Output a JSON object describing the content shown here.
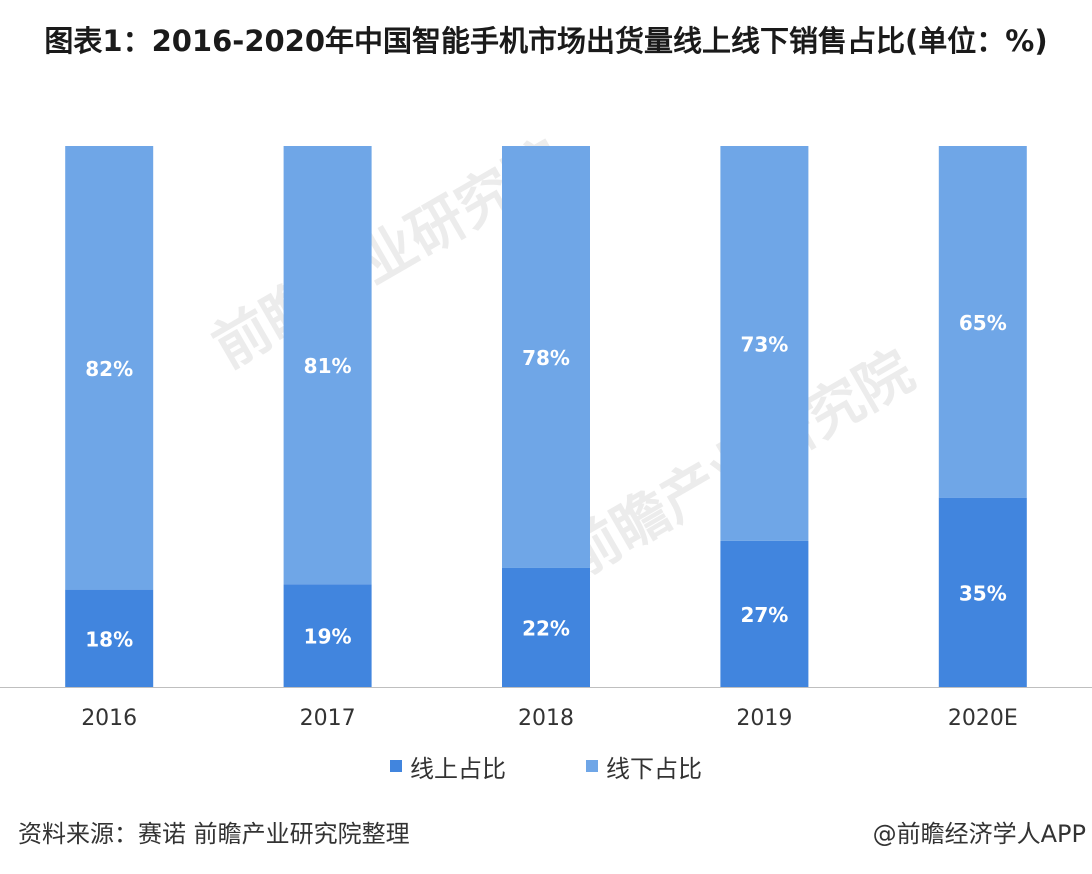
{
  "title": "图表1：2016-2020年中国智能手机市场出货量线上线下销售占比(单位：%)",
  "chart_data": {
    "type": "bar",
    "stacked": true,
    "categories": [
      "2016",
      "2017",
      "2018",
      "2019",
      "2020E"
    ],
    "series": [
      {
        "name": "线上占比",
        "values": [
          18,
          19,
          22,
          27,
          35
        ],
        "labels": [
          "18%",
          "19%",
          "22%",
          "27%",
          "35%"
        ],
        "color": "#4185DE"
      },
      {
        "name": "线下占比",
        "values": [
          82,
          81,
          78,
          73,
          65
        ],
        "labels": [
          "82%",
          "81%",
          "78%",
          "73%",
          "65%"
        ],
        "color": "#6FA6E7"
      }
    ],
    "ylim": [
      0,
      100
    ],
    "grid": false,
    "legend_position": "bottom"
  },
  "legend": {
    "online": "线上占比",
    "offline": "线下占比"
  },
  "footer": {
    "source": "资料来源：赛诺 前瞻产业研究院整理",
    "credit": "@前瞻经济学人APP"
  },
  "watermark": {
    "text": "前瞻产业研究院"
  },
  "colors": {
    "online": "#4185DE",
    "offline": "#6FA6E7",
    "axis": "#bfbfbf"
  }
}
